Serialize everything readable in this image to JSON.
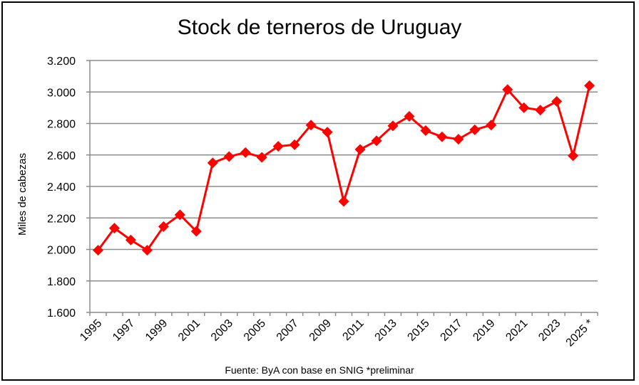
{
  "chart_data": {
    "type": "line",
    "title": "Stock de terneros de Uruguay",
    "ylabel": "Miles de cabezas",
    "xlabel": "",
    "source": "Fuente: ByA con base en SNIG *preliminar",
    "ylim": [
      1600,
      3200
    ],
    "yticks": [
      1600,
      1800,
      2000,
      2200,
      2400,
      2600,
      2800,
      3000,
      3200
    ],
    "ytick_labels": [
      "1.600",
      "1.800",
      "2.000",
      "2.200",
      "2.400",
      "2.600",
      "2.800",
      "3.000",
      "3.200"
    ],
    "x": [
      "1995",
      "1996",
      "1997",
      "1998",
      "1999",
      "2000",
      "2001",
      "2002",
      "2003",
      "2004",
      "2005",
      "2006",
      "2007",
      "2008",
      "2009",
      "2010",
      "2011",
      "2012",
      "2013",
      "2014",
      "2015",
      "2016",
      "2017",
      "2018",
      "2019",
      "2020",
      "2021",
      "2022",
      "2023",
      "2024",
      "2025 *"
    ],
    "xtick_labels": [
      "1995",
      "",
      "1997",
      "",
      "1999",
      "",
      "2001",
      "",
      "2003",
      "",
      "2005",
      "",
      "2007",
      "",
      "2009",
      "",
      "2011",
      "",
      "2013",
      "",
      "2015",
      "",
      "2017",
      "",
      "2019",
      "",
      "2021",
      "",
      "2023",
      "",
      "2025 *"
    ],
    "series": [
      {
        "values": [
          1995,
          2135,
          2060,
          1995,
          2145,
          2220,
          2115,
          2550,
          2590,
          2615,
          2585,
          2655,
          2665,
          2790,
          2745,
          2305,
          2635,
          2690,
          2785,
          2845,
          2755,
          2715,
          2700,
          2760,
          2790,
          3015,
          2900,
          2885,
          2940,
          2595,
          3040
        ],
        "color": "#ff0000",
        "marker": "diamond"
      }
    ],
    "grid": true,
    "legend": "none"
  }
}
